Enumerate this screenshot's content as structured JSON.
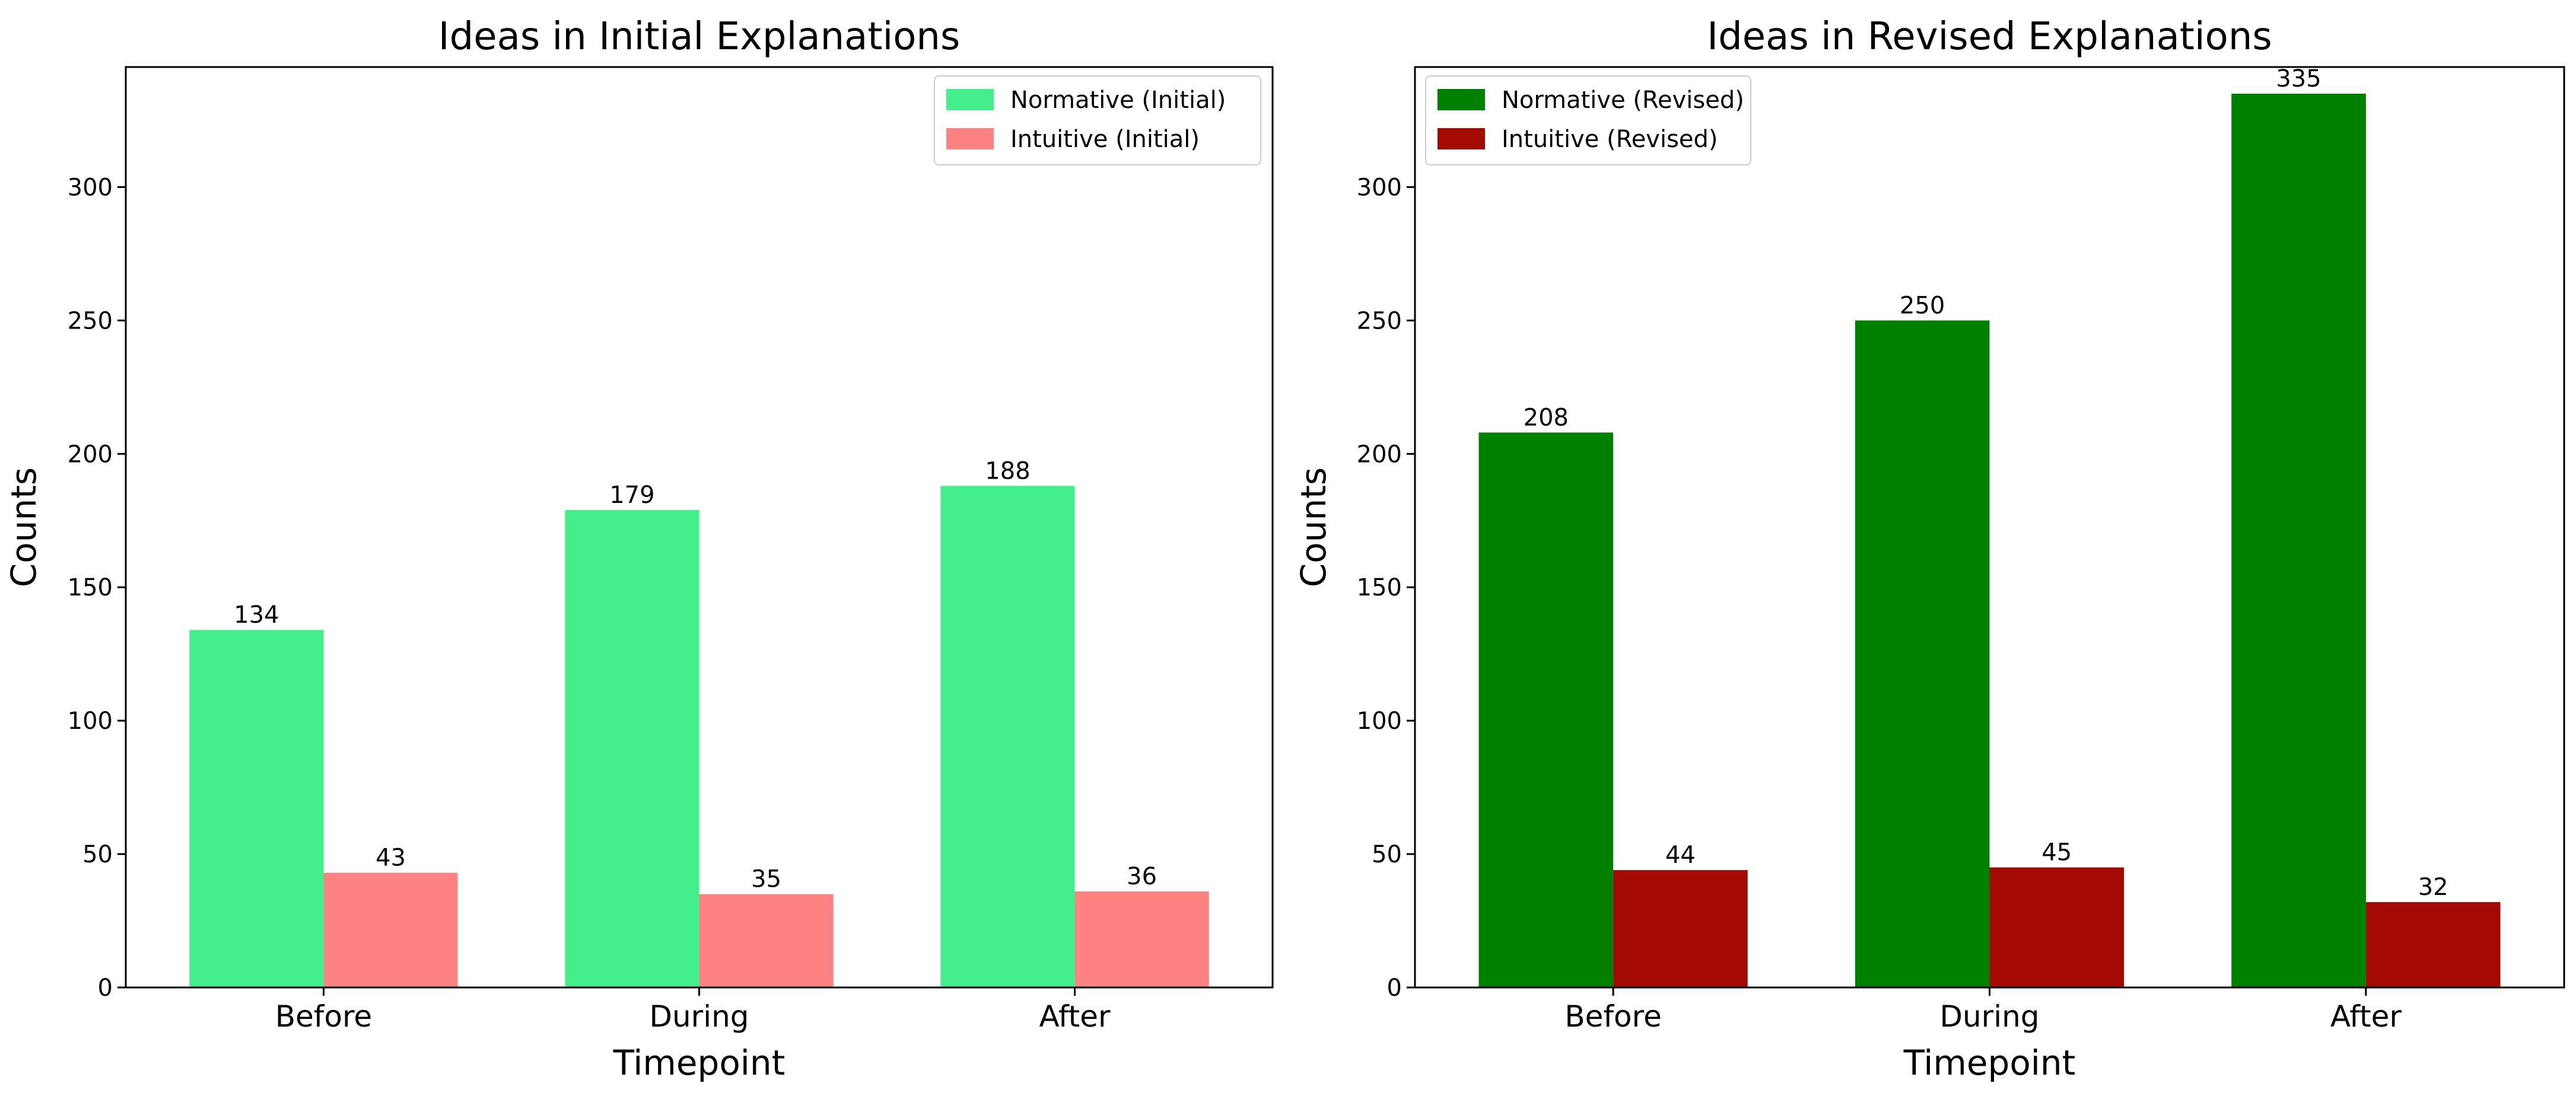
{
  "chart_data": [
    {
      "type": "bar",
      "title": "Ideas in Initial Explanations",
      "xlabel": "Timepoint",
      "ylabel": "Counts",
      "categories": [
        "Before",
        "During",
        "After"
      ],
      "series": [
        {
          "name": "Normative (Initial)",
          "color": "#43ef8b",
          "values": [
            134,
            179,
            188
          ]
        },
        {
          "name": "Intuitive (Initial)",
          "color": "#ff8282",
          "values": [
            43,
            35,
            36
          ]
        }
      ],
      "ylim": [
        0,
        345
      ],
      "yticks": [
        0,
        50,
        100,
        150,
        200,
        250,
        300
      ],
      "legend": "top-right",
      "grid": false
    },
    {
      "type": "bar",
      "title": "Ideas in Revised Explanations",
      "xlabel": "Timepoint",
      "ylabel": "Counts",
      "categories": [
        "Before",
        "During",
        "After"
      ],
      "series": [
        {
          "name": "Normative (Revised)",
          "color": "#008000",
          "values": [
            208,
            250,
            335
          ]
        },
        {
          "name": "Intuitive (Revised)",
          "color": "#a30a04",
          "values": [
            44,
            45,
            32
          ]
        }
      ],
      "ylim": [
        0,
        345
      ],
      "yticks": [
        0,
        50,
        100,
        150,
        200,
        250,
        300
      ],
      "legend": "top-left",
      "grid": false
    }
  ]
}
